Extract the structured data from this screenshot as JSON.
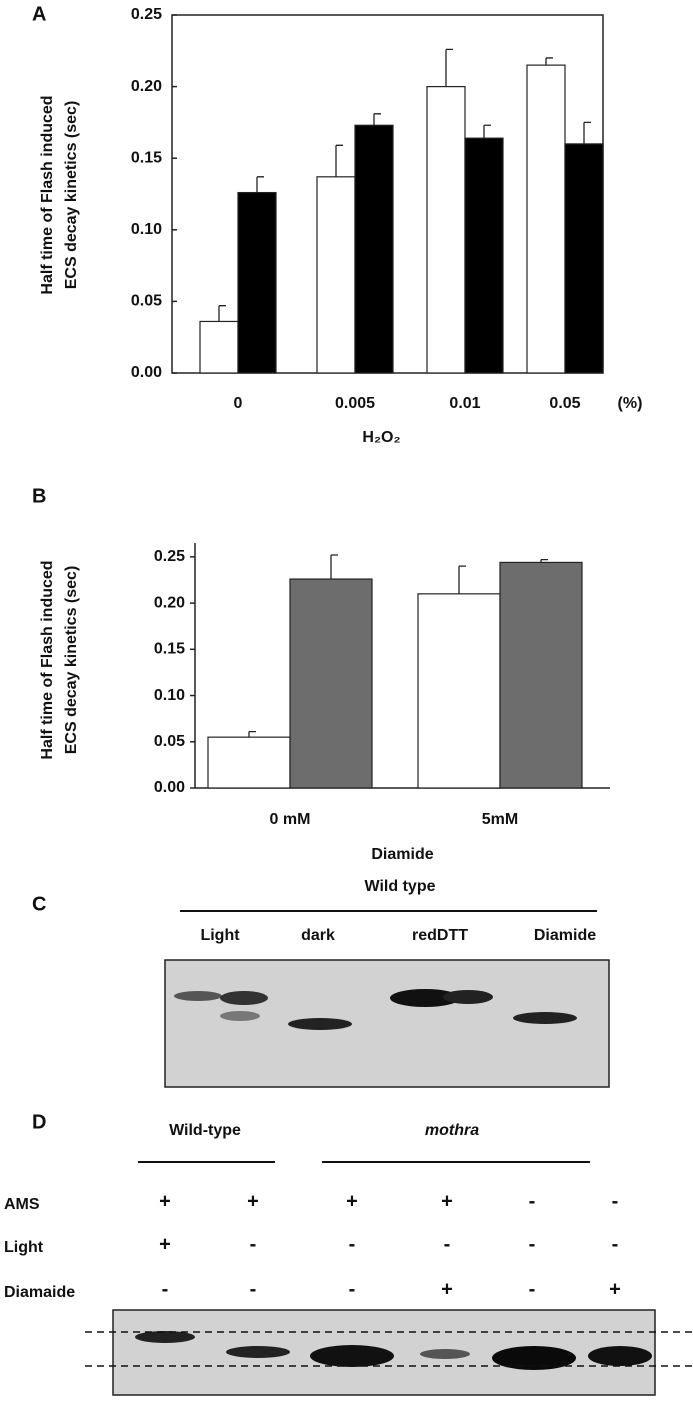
{
  "chart_data": [
    {
      "type": "bar",
      "panel": "A",
      "ylabel": [
        "Half time of Flash induced",
        "ECS decay kinetics (sec)"
      ],
      "xlabel": "H₂O₂",
      "x_unit_label": "(%)",
      "categories": [
        "0",
        "0.005",
        "0.01",
        "0.05"
      ],
      "series": [
        {
          "color": "#ffffff",
          "values": [
            0.036,
            0.137,
            0.2,
            0.215
          ],
          "errors": [
            0.011,
            0.022,
            0.026,
            0.005
          ]
        },
        {
          "color": "#000000",
          "values": [
            0.126,
            0.173,
            0.164,
            0.16
          ],
          "errors": [
            0.011,
            0.008,
            0.009,
            0.015
          ]
        }
      ],
      "ylim": [
        0,
        0.25
      ],
      "yticks": [
        {
          "value": 0,
          "label": "0.00"
        },
        {
          "value": 0.05,
          "label": "0.05"
        },
        {
          "value": 0.1,
          "label": "0.10"
        },
        {
          "value": 0.15,
          "label": "0.15"
        },
        {
          "value": 0.2,
          "label": "0.20"
        },
        {
          "value": 0.25,
          "label": "0.25"
        }
      ]
    },
    {
      "type": "bar",
      "panel": "B",
      "ylabel": [
        "Half time of Flash induced",
        "ECS decay kinetics (sec)"
      ],
      "xlabel": "Diamide",
      "categories": [
        "0 mM",
        "5mM"
      ],
      "series": [
        {
          "color": "#ffffff",
          "values": [
            0.055,
            0.21
          ],
          "errors": [
            0.006,
            0.03
          ]
        },
        {
          "color": "#6d6d6d",
          "values": [
            0.226,
            0.244
          ],
          "errors": [
            0.026,
            0.003
          ]
        }
      ],
      "ylim": [
        0,
        0.265
      ],
      "yticks": [
        {
          "value": 0,
          "label": "0.00"
        },
        {
          "value": 0.05,
          "label": "0.05"
        },
        {
          "value": 0.1,
          "label": "0.10"
        },
        {
          "value": 0.15,
          "label": "0.15"
        },
        {
          "value": 0.2,
          "label": "0.20"
        },
        {
          "value": 0.25,
          "label": "0.25"
        }
      ]
    }
  ],
  "panel_c": {
    "panel": "C",
    "group": "Wild type",
    "lanes": [
      "Light",
      "dark",
      "redDTT",
      "Diamide"
    ]
  },
  "panel_d": {
    "panel": "D",
    "groups": [
      "Wild-type",
      "mothra"
    ],
    "rows": [
      {
        "label": "AMS",
        "marks": [
          "+",
          "+",
          "+",
          "+",
          "-",
          "-"
        ]
      },
      {
        "label": "Light",
        "marks": [
          "+",
          "-",
          "-",
          "-",
          "-",
          "-"
        ]
      },
      {
        "label": "Diamaide",
        "marks": [
          "-",
          "-",
          "-",
          "+",
          "-",
          "+"
        ]
      }
    ]
  }
}
